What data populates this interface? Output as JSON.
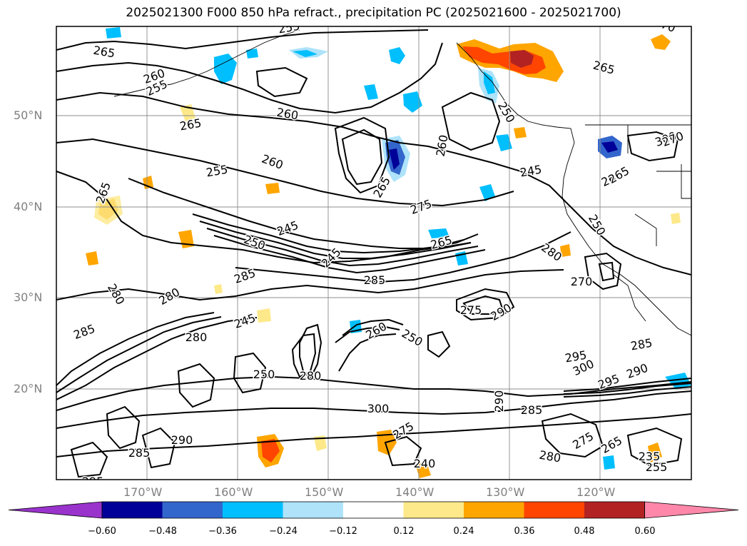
{
  "title": "2025021300 F000 850 hPa refract., precipitation PC (2025021600 - 2025021700)",
  "latitude_labels": [
    "50°N",
    "40°N",
    "30°N",
    "20°N"
  ],
  "longitude_labels": [
    "170°W",
    "160°W",
    "150°W",
    "140°W",
    "130°W",
    "120°W"
  ],
  "colorbar": {
    "ticks": [
      "−0.60",
      "−0.48",
      "−0.36",
      "−0.24",
      "−0.12",
      "0.12",
      "0.24",
      "0.36",
      "0.48",
      "0.60"
    ],
    "colors": [
      "#9933cc",
      "#000099",
      "#3366cc",
      "#00bfff",
      "#aee3fa",
      "#ffffff",
      "#fde98a",
      "#ffa500",
      "#ff4500",
      "#b22222",
      "#ff88aa"
    ]
  },
  "contour_labels": [
    "265",
    "260",
    "255",
    "260",
    "265",
    "265",
    "255",
    "260",
    "255",
    "250",
    "245",
    "285",
    "245",
    "285",
    "275",
    "265",
    "280",
    "250",
    "260",
    "250",
    "245",
    "260",
    "265",
    "270",
    "280",
    "285",
    "280",
    "280",
    "250",
    "275",
    "290",
    "285",
    "290",
    "295",
    "300",
    "295",
    "290",
    "285",
    "280",
    "275",
    "265",
    "240",
    "235",
    "255",
    "245",
    "260",
    "265",
    "280",
    "275",
    "300",
    "285",
    "295",
    "300",
    "270",
    "265",
    "270",
    "250",
    "290"
  ]
}
